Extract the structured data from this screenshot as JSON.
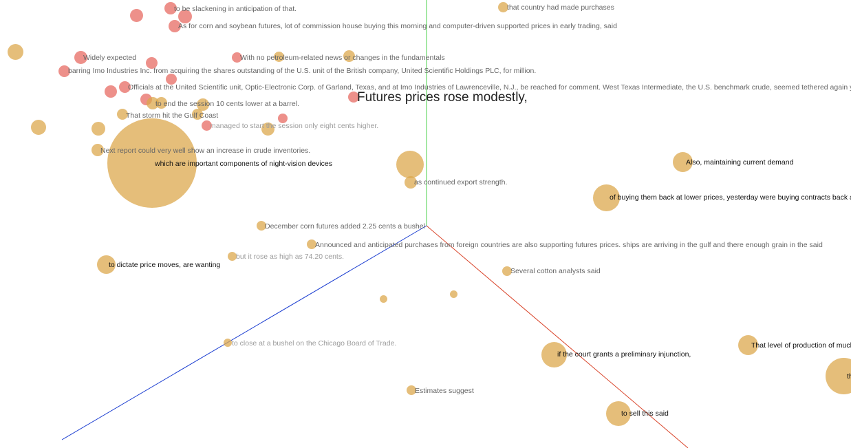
{
  "scene": {
    "axis_colors": {
      "y": "#4ad04a",
      "x": "#d9442a",
      "z": "#1d3fd1"
    },
    "bubble_colors": {
      "orange": "#dca74a",
      "red": "#e76960"
    }
  },
  "labels": {
    "l01": "to be slackening in anticipation of that.",
    "l02": "that country had made purchases",
    "l03": "As for corn and soybean futures, lot of commission house buying this morning and computer-driven supported prices in early trading, said",
    "l04": "Widely expected",
    "l05": "With no petroleum-related news or changes in the fundamentals",
    "l06": "barring Imo Industries Inc. from acquiring the shares outstanding of the U.S. unit of the British company, United Scientific Holdings PLC, for million.",
    "l07": "Officials at the United Scientific unit, Optic-Electronic Corp. of Garland, Texas, and at Imo Industries of Lawrenceville, N.J., be reached for comment. West Texas Intermediate, the U.S. benchmark crude, seemed tethered again yesterday in tr",
    "l08": "Futures prices rose modestly,",
    "l09": "to end the session 10 cents lower at a barrel.",
    "l10": "That storm hit the Gulf Coast",
    "l11": "managed to start the session only eight cents higher.",
    "l12": "Next report could very well show an increase in crude inventories.",
    "l13": "which are important components of night-vision devices",
    "l14": "Also, maintaining current demand",
    "l15": "as continued export strength.",
    "l16": "of buying them back at lower prices, yesterday were buying contracts back at hi",
    "l17": "December corn futures added 2.25 cents a bushel",
    "l18": "Announced and anticipated purchases from foreign countries are also supporting futures prices. ships are arriving in the gulf and there enough grain in the said",
    "l19": "to dictate price moves, are wanting",
    "l20": "but it rose as high as 74.20 cents.",
    "l21": "Several cotton analysts said",
    "l22": "to close at a bushel on the Chicago Board of Trade.",
    "l23": "That level of production of much",
    "l24": "if the court grants a preliminary injunction,",
    "l25": "Estimates suggest",
    "l26": "to sell this said",
    "l27": "th"
  }
}
